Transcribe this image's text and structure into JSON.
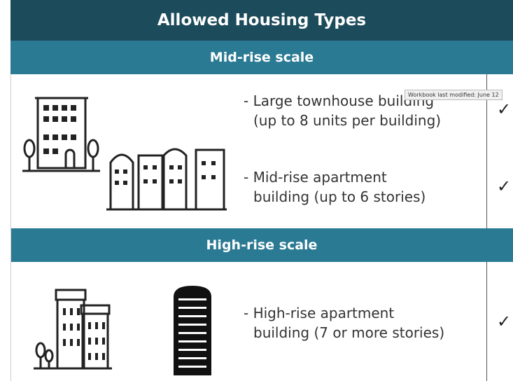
{
  "header": {
    "title": "Allowed Housing Types"
  },
  "sections": [
    {
      "title": "Mid-rise scale",
      "items": [
        {
          "lines": [
            "- Large townhouse building",
            "(up to 8 units per building)"
          ],
          "check": "✓"
        },
        {
          "lines": [
            "- Mid-rise apartment",
            "building (up to 6 stories)"
          ],
          "check": "✓"
        }
      ]
    },
    {
      "title": "High-rise scale",
      "items": [
        {
          "lines": [
            "- High-rise apartment",
            "building (7 or more stories)"
          ],
          "check": "✓"
        }
      ]
    }
  ],
  "tooltip": "Workbook last modified: June 12"
}
